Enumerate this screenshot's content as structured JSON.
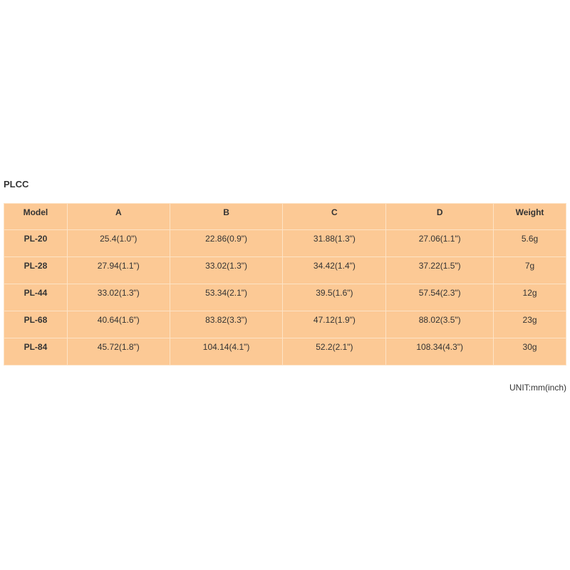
{
  "title": "PLCC",
  "table": {
    "headers": [
      "Model",
      "A",
      "B",
      "C",
      "D",
      "Weight"
    ],
    "rows": [
      [
        "PL-20",
        "25.4(1.0\")",
        "22.86(0.9\")",
        "31.88(1.3\")",
        "27.06(1.1\")",
        "5.6g"
      ],
      [
        "PL-28",
        "27.94(1.1\")",
        "33.02(1.3\")",
        "34.42(1.4\")",
        "37.22(1.5\")",
        "7g"
      ],
      [
        "PL-44",
        "33.02(1.3\")",
        "53.34(2.1\")",
        "39.5(1.6\")",
        "57.54(2.3\")",
        "12g"
      ],
      [
        "PL-68",
        "40.64(1.6\")",
        "83.82(3.3\")",
        "47.12(1.9\")",
        "88.02(3.5\")",
        "23g"
      ],
      [
        "PL-84",
        "45.72(1.8\")",
        "104.14(4.1\")",
        "52.2(2.1\")",
        "108.34(4.3\")",
        "30g"
      ]
    ]
  },
  "unit_note": "UNIT:mm(inch)",
  "colors": {
    "table_bg": "#fcc995"
  }
}
